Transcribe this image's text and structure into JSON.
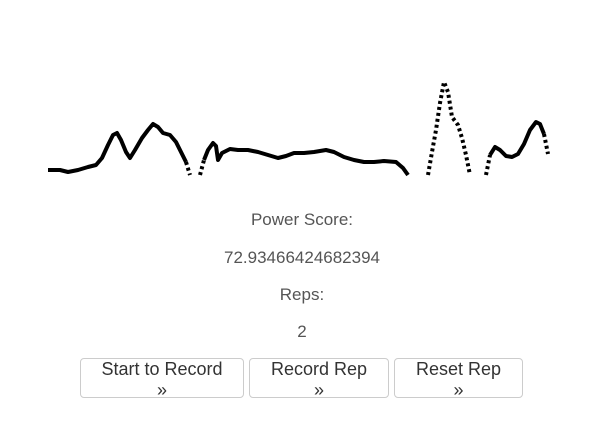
{
  "waveform": {
    "color": "#000000"
  },
  "metrics": {
    "power_label": "Power Score:",
    "power_value": "72.93466424682394",
    "reps_label": "Reps:",
    "reps_value": "2"
  },
  "buttons": {
    "start": "Start to Record »",
    "record": "Record Rep »",
    "reset": "Reset Rep »"
  }
}
